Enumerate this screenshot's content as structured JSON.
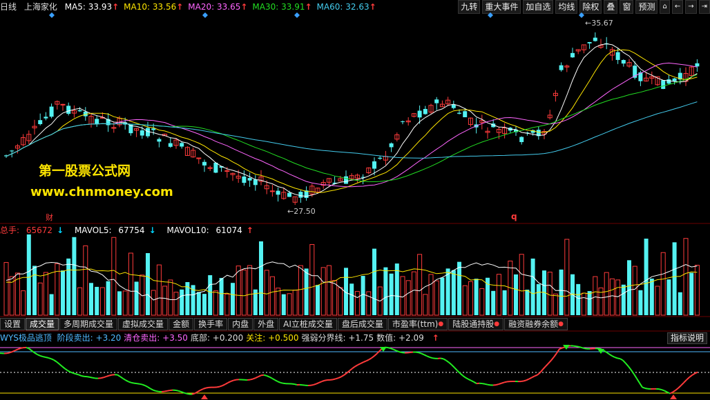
{
  "header": {
    "period": "日线",
    "stock_name": "上海家化",
    "ma": [
      {
        "label": "MA5:",
        "value": "33.93",
        "color": "#ffffff",
        "arrow": "↑"
      },
      {
        "label": "MA10:",
        "value": "33.56",
        "color": "#ffe600",
        "arrow": "↑"
      },
      {
        "label": "MA20:",
        "value": "33.65",
        "color": "#ff66ff",
        "arrow": "↑"
      },
      {
        "label": "MA30:",
        "value": "33.91",
        "color": "#22dd22",
        "arrow": "↑"
      },
      {
        "label": "MA60:",
        "value": "32.63",
        "color": "#44ccee",
        "arrow": "↑"
      }
    ]
  },
  "toolbar": {
    "buttons": [
      "九转",
      "重大事件",
      "加自选",
      "均线",
      "除权",
      "叠",
      "窗",
      "预测"
    ],
    "lock_icon": "lock-icon",
    "back_icon": "arrow-left-icon",
    "forward_icon": "arrow-right-icon",
    "end_icon": "skip-end-icon"
  },
  "price_chart": {
    "high_annotation": "35.67",
    "low_annotation": "27.50",
    "marker_cai": "财",
    "marker_q": "q",
    "watermark_title": "第一股票公式网",
    "watermark_url": "www.chnmoney.com"
  },
  "volume_header": {
    "total_label": "总手:",
    "total_value": "65672",
    "total_arrow": "↓",
    "mavol5_label": "MAVOL5:",
    "mavol5_value": "67754",
    "mavol5_arrow": "↓",
    "mavol10_label": "MAVOL10:",
    "mavol10_value": "61074",
    "mavol10_arrow": "↑"
  },
  "tabs": [
    {
      "label": "设置",
      "active": false,
      "dot": false
    },
    {
      "label": "成交量",
      "active": true,
      "dot": false
    },
    {
      "label": "多周期成交量",
      "active": false,
      "dot": false
    },
    {
      "label": "虚拟成交量",
      "active": false,
      "dot": false
    },
    {
      "label": "金额",
      "active": false,
      "dot": false
    },
    {
      "label": "换手率",
      "active": false,
      "dot": false
    },
    {
      "label": "内盘",
      "active": false,
      "dot": false
    },
    {
      "label": "外盘",
      "active": false,
      "dot": false
    },
    {
      "label": "AI立桩成交量",
      "active": false,
      "dot": false
    },
    {
      "label": "盘后成交量",
      "active": false,
      "dot": false
    },
    {
      "label": "市盈率(ttm)",
      "active": false,
      "dot": true
    },
    {
      "label": "陆股通持股",
      "active": false,
      "dot": true
    },
    {
      "label": "融资融券余额",
      "active": false,
      "dot": true
    }
  ],
  "indicator_header": {
    "name": "WYS极品逃顶",
    "items": [
      {
        "label": "阶段卖出:",
        "value": "+3.20",
        "color": "#4fb8ff"
      },
      {
        "label": "清仓卖出:",
        "value": "+3.50",
        "color": "#ff66ff"
      },
      {
        "label": "底部:",
        "value": "+0.200",
        "color": "#dddddd"
      },
      {
        "label": "关注:",
        "value": "+0.500",
        "color": "#ffe600"
      },
      {
        "label": "强弱分界线:",
        "value": "+1.75",
        "color": "#dddddd"
      },
      {
        "label": "数值:",
        "value": "+2.09",
        "color": "#dddddd"
      }
    ],
    "value_arrow": "↑",
    "help_label": "指标说明"
  },
  "colors": {
    "up": "#ff3b3b",
    "down": "#54f2f2",
    "ma5": "#ffffff",
    "ma10": "#ffe600",
    "ma20": "#ff66ff",
    "ma30": "#22dd22",
    "ma60": "#44ccee"
  }
}
